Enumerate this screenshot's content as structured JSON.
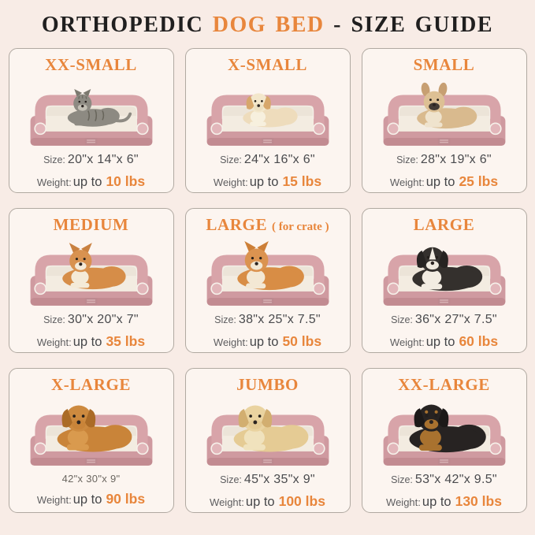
{
  "colors": {
    "page_background": "#f8ece6",
    "card_background": "#fcf5f0",
    "card_border": "#b0a9a1",
    "accent_orange": "#e8863c",
    "title_black": "#201f1f",
    "label_gray": "#5e5e60",
    "value_gray": "#494a4d",
    "bed_pink": "#d8a4a9",
    "bed_base_pink": "#cf9aa0",
    "bed_fleece_cream": "#f3ece1"
  },
  "header": {
    "title_prefix": "ORTHOPEDIC ",
    "title_highlight": "DOG BED",
    "title_suffix": " - SIZE GUIDE"
  },
  "cards": [
    {
      "title": "XX-SMALL",
      "note": "",
      "size_label": "Size:",
      "size_value": "20\"x 14\"x 6\"",
      "size_muted": false,
      "weight_label": "Weight:",
      "weight_prefix": "up to",
      "weight_value": "10 lbs",
      "illustration": {
        "name": "gray-tabby-cat",
        "kind": "cat",
        "ears": "cat",
        "body": "#8d8a82",
        "head": "#8d8a82",
        "ear": "#7c796f",
        "muzzle": "#c3bfb4",
        "chest": "",
        "stripes": "#5c594f",
        "scale": 0.78
      }
    },
    {
      "title": "X-SMALL",
      "note": "",
      "size_label": "Size:",
      "size_value": "24\"x 16\"x 6\"",
      "size_muted": false,
      "weight_label": "Weight:",
      "weight_prefix": "up to",
      "weight_value": "15 lbs",
      "illustration": {
        "name": "shih-tzu-puppy",
        "kind": "dog",
        "ears": "floppy",
        "body": "#eedcbc",
        "head": "#f3e7cb",
        "ear": "#d7a76b",
        "muzzle": "#ecdfc1",
        "chest": "#f7f0de",
        "scale": 0.82
      }
    },
    {
      "title": "SMALL",
      "note": "",
      "size_label": "Size:",
      "size_value": "28\"x 19\"x 6\"",
      "size_muted": false,
      "weight_label": "Weight:",
      "weight_prefix": "up to",
      "weight_value": "25 lbs",
      "illustration": {
        "name": "french-bulldog",
        "kind": "dog",
        "ears": "bat",
        "body": "#d9ba8e",
        "head": "#ddc094",
        "ear": "#c79f72",
        "muzzle": "#423a34",
        "chest": "#efe3cd",
        "scale": 0.9
      }
    },
    {
      "title": "MEDIUM",
      "note": "",
      "size_label": "Size:",
      "size_value": "30\"x 20\"x 7\"",
      "size_muted": false,
      "weight_label": "Weight:",
      "weight_prefix": "up to",
      "weight_value": "35 lbs",
      "illustration": {
        "name": "corgi",
        "kind": "dog",
        "ears": "up",
        "body": "#d68d48",
        "head": "#d89250",
        "ear": "#c98140",
        "muzzle": "#f4ead8",
        "chest": "#f4ead8",
        "scale": 0.95
      }
    },
    {
      "title": "LARGE",
      "note": "( for crate )",
      "size_label": "Size:",
      "size_value": "38\"x 25\"x 7.5\"",
      "size_muted": false,
      "weight_label": "Weight:",
      "weight_prefix": "up to",
      "weight_value": "50 lbs",
      "illustration": {
        "name": "shiba-inu",
        "kind": "dog",
        "ears": "up",
        "body": "#d88d45",
        "head": "#db9350",
        "ear": "#cd7f37",
        "muzzle": "#f3e8d4",
        "chest": "#f3e8d4",
        "scale": 1.0
      }
    },
    {
      "title": "LARGE",
      "note": "",
      "size_label": "Size:",
      "size_value": "36\"x 27\"x 7.5\"",
      "size_muted": false,
      "weight_label": "Weight:",
      "weight_prefix": "up to",
      "weight_value": "60 lbs",
      "illustration": {
        "name": "border-collie",
        "kind": "dog",
        "ears": "floppy",
        "body": "#34302d",
        "head": "#34302d",
        "ear": "#262321",
        "muzzle": "#efe9de",
        "chest": "#f2ece2",
        "blaze": "#f2ece2",
        "scale": 1.05
      }
    },
    {
      "title": "X-LARGE",
      "note": "",
      "size_label": "",
      "size_value": "42\"x 30\"x 9\"",
      "size_muted": true,
      "weight_label": "Weight:",
      "weight_prefix": "up to",
      "weight_value": "90 lbs",
      "illustration": {
        "name": "golden-retriever",
        "kind": "dog",
        "ears": "floppy",
        "body": "#c98439",
        "head": "#cd8a3f",
        "ear": "#ab6b27",
        "muzzle": "#c98439",
        "chest": "#d99a4e",
        "scale": 1.12
      }
    },
    {
      "title": "JUMBO",
      "note": "",
      "size_label": "Size:",
      "size_value": "45\"x 35\"x 9\"",
      "size_muted": false,
      "weight_label": "Weight:",
      "weight_prefix": "up to",
      "weight_value": "100 lbs",
      "illustration": {
        "name": "yellow-labrador",
        "kind": "dog",
        "ears": "floppy",
        "body": "#e5cb94",
        "head": "#ead3a0",
        "ear": "#d2ae70",
        "muzzle": "#e5cb94",
        "chest": "#f0e2bd",
        "scale": 1.12
      }
    },
    {
      "title": "XX-LARGE",
      "note": "",
      "size_label": "Size:",
      "size_value": "53\"x 42\"x 9.5\"",
      "size_muted": false,
      "weight_label": "Weight:",
      "weight_prefix": "up to",
      "weight_value": "130 lbs",
      "illustration": {
        "name": "rottweiler",
        "kind": "dog",
        "ears": "floppy",
        "body": "#272322",
        "head": "#272322",
        "ear": "#1c1918",
        "muzzle": "#a9722f",
        "chest": "#a9722f",
        "brows": "#a9722f",
        "scale": 1.15
      }
    }
  ]
}
